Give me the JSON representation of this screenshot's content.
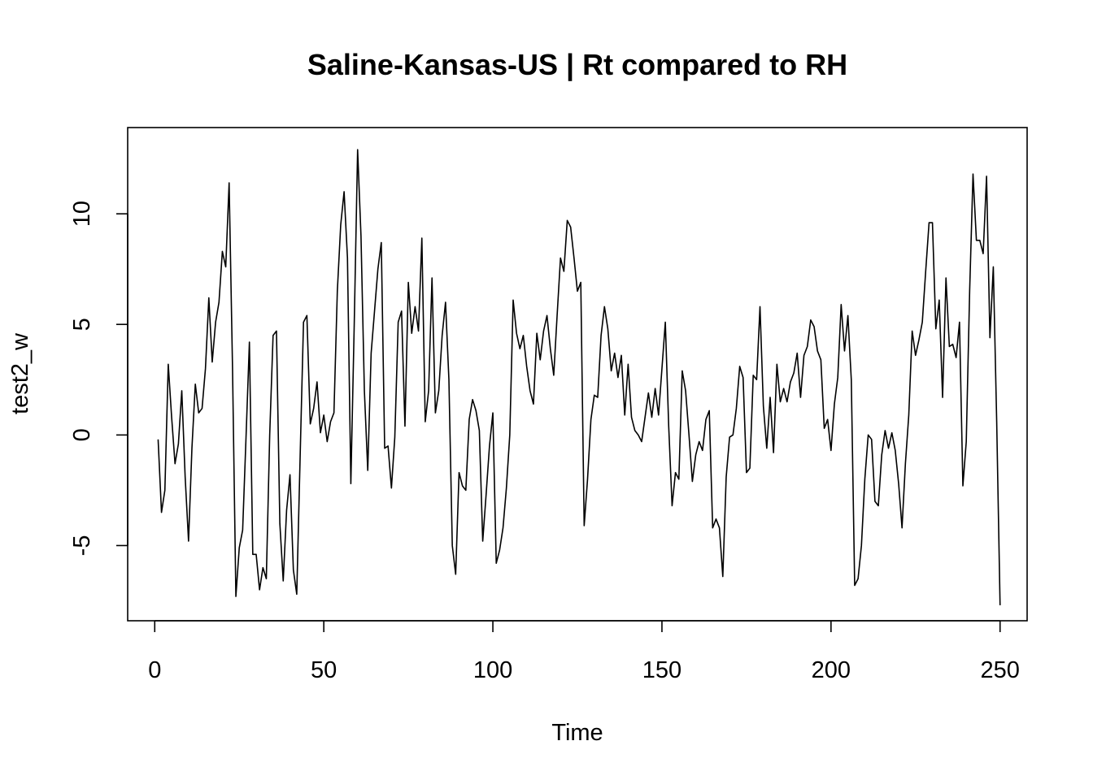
{
  "chart_data": {
    "type": "line",
    "title": "Saline-Kansas-US | Rt compared to RH",
    "xlabel": "Time",
    "ylabel": "test2_w",
    "xlim": [
      -8,
      258
    ],
    "ylim": [
      -8.4,
      13.9
    ],
    "x_ticks": [
      0,
      50,
      100,
      150,
      200,
      250
    ],
    "x_tick_labels": [
      "0",
      "50",
      "100",
      "150",
      "200",
      "250"
    ],
    "y_ticks": [
      -5,
      0,
      5,
      10
    ],
    "y_tick_labels": [
      "-5",
      "0",
      "5",
      "10"
    ],
    "grid": false,
    "legend": "none",
    "line_color": "#000000",
    "x_start": 1,
    "series": [
      {
        "values": [
          -0.2,
          -3.5,
          -2.5,
          3.2,
          0.8,
          -1.3,
          -0.4,
          2.0,
          -1.9,
          -4.8,
          -0.6,
          2.3,
          1.0,
          1.2,
          3.0,
          6.2,
          3.3,
          5.1,
          6.0,
          8.3,
          7.6,
          11.4,
          3.1,
          -7.3,
          -5.1,
          -4.3,
          -0.1,
          4.2,
          -5.4,
          -5.4,
          -7.0,
          -6.0,
          -6.5,
          0.0,
          4.5,
          4.7,
          -4.0,
          -6.6,
          -3.4,
          -1.8,
          -6.1,
          -7.2,
          -1.0,
          5.1,
          5.4,
          0.5,
          1.2,
          2.4,
          0.1,
          0.9,
          -0.3,
          0.6,
          1.0,
          6.5,
          9.5,
          11.0,
          8.0,
          -2.2,
          5.0,
          12.9,
          9.0,
          2.0,
          -1.6,
          3.7,
          5.6,
          7.5,
          8.7,
          -0.6,
          -0.5,
          -2.4,
          -0.1,
          5.1,
          5.6,
          0.4,
          6.9,
          4.6,
          5.8,
          4.7,
          8.9,
          0.6,
          2.0,
          7.1,
          1.0,
          2.0,
          4.5,
          6.0,
          2.5,
          -5.0,
          -6.3,
          -1.7,
          -2.3,
          -2.5,
          0.7,
          1.6,
          1.1,
          0.2,
          -4.8,
          -2.7,
          -0.5,
          1.0,
          -5.8,
          -5.2,
          -4.2,
          -2.4,
          0.0,
          6.1,
          4.6,
          3.9,
          4.5,
          3.1,
          2.0,
          1.4,
          4.6,
          3.4,
          4.7,
          5.4,
          3.9,
          2.7,
          5.4,
          8.0,
          7.4,
          9.7,
          9.4,
          8.0,
          6.5,
          6.9,
          -4.1,
          -2.0,
          0.7,
          1.8,
          1.7,
          4.5,
          5.8,
          4.8,
          2.9,
          3.7,
          2.6,
          3.6,
          0.9,
          3.2,
          0.8,
          0.2,
          0.0,
          -0.3,
          0.8,
          1.9,
          0.8,
          2.1,
          0.9,
          3.0,
          5.1,
          0.4,
          -3.2,
          -1.7,
          -2.0,
          2.9,
          2.0,
          0.0,
          -2.1,
          -0.9,
          -0.3,
          -0.7,
          0.7,
          1.1,
          -4.2,
          -3.8,
          -4.2,
          -6.4,
          -1.9,
          -0.1,
          0.0,
          1.2,
          3.1,
          2.6,
          -1.7,
          -1.5,
          2.7,
          2.5,
          5.8,
          1.3,
          -0.6,
          1.7,
          -0.8,
          3.2,
          1.5,
          2.1,
          1.5,
          2.4,
          2.8,
          3.7,
          1.7,
          3.6,
          4.0,
          5.2,
          4.9,
          3.8,
          3.4,
          0.3,
          0.7,
          -0.7,
          1.4,
          2.6,
          5.9,
          3.8,
          5.4,
          2.5,
          -6.8,
          -6.5,
          -5.0,
          -2.0,
          0.0,
          -0.2,
          -3.0,
          -3.2,
          -0.9,
          0.2,
          -0.6,
          0.1,
          -0.7,
          -2.2,
          -4.2,
          -1.3,
          0.9,
          4.7,
          3.6,
          4.3,
          5.1,
          7.4,
          9.6,
          9.6,
          4.8,
          6.1,
          1.7,
          7.1,
          4.0,
          4.1,
          3.5,
          5.1,
          -2.3,
          -0.3,
          6.5,
          11.8,
          8.8,
          8.8,
          8.2,
          11.7,
          4.4,
          7.6,
          0.6,
          -7.7
        ]
      }
    ]
  }
}
